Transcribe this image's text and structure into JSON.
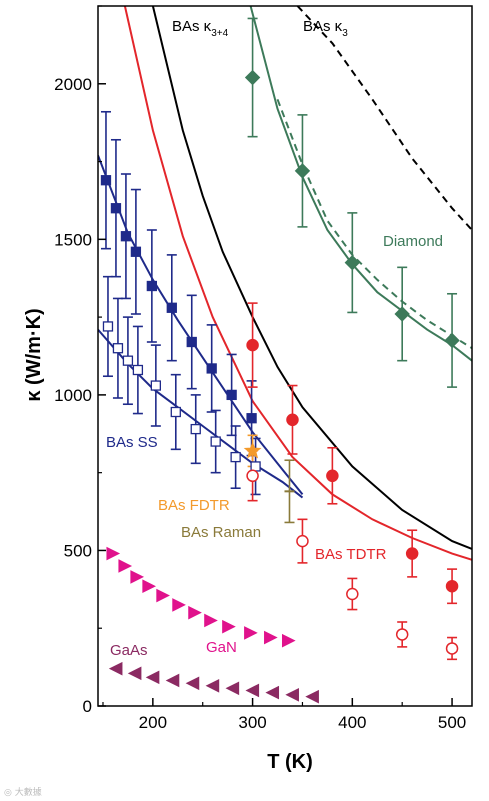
{
  "chart_data": {
    "type": "scatter",
    "xlabel": "T (K)",
    "ylabel": "κ (W/m·K)",
    "xlim": [
      145,
      520
    ],
    "ylim": [
      0,
      2250
    ],
    "xticks": [
      200,
      300,
      400,
      500
    ],
    "yticks": [
      0,
      500,
      1000,
      1500,
      2000
    ],
    "grid": false,
    "annotations": [
      {
        "text": "BAs κ",
        "sub": "3+4",
        "color": "#000000"
      },
      {
        "text": "BAs κ",
        "sub": "3",
        "color": "#000000"
      },
      {
        "text": "Diamond",
        "color": "#3d7a5a"
      },
      {
        "text": "BAs SS",
        "color": "#1f2a8a"
      },
      {
        "text": "BAs FDTR",
        "color": "#f39a2c"
      },
      {
        "text": "BAs Raman",
        "color": "#8a7a3a"
      },
      {
        "text": "BAs TDTR",
        "color": "#e3262b"
      },
      {
        "text": "GaN",
        "color": "#e0128c"
      },
      {
        "text": "GaAs",
        "color": "#8b2a62"
      }
    ],
    "curves": [
      {
        "id": "bas-k34",
        "color": "#000000",
        "dash": false,
        "x": [
          200,
          230,
          250,
          270,
          300,
          325,
          350,
          400,
          450,
          500,
          520
        ],
        "y": [
          2250,
          1850,
          1640,
          1460,
          1250,
          1090,
          960,
          770,
          630,
          530,
          505
        ]
      },
      {
        "id": "bas-k3",
        "color": "#000000",
        "dash": true,
        "x": [
          345,
          380,
          420,
          460,
          500,
          520
        ],
        "y": [
          2250,
          2130,
          1950,
          1760,
          1600,
          1530
        ]
      },
      {
        "id": "bas-tdtr-fit",
        "color": "#e3262b",
        "dash": false,
        "x": [
          172,
          200,
          230,
          260,
          300,
          340,
          380,
          420,
          460,
          500,
          520
        ],
        "y": [
          2250,
          1850,
          1510,
          1250,
          980,
          800,
          680,
          600,
          540,
          490,
          470
        ]
      },
      {
        "id": "diamond-fit",
        "color": "#3d7a5a",
        "dash": false,
        "x": [
          298,
          325,
          350,
          375,
          400,
          425,
          450,
          475,
          500,
          520
        ],
        "y": [
          2250,
          1920,
          1700,
          1530,
          1420,
          1330,
          1270,
          1210,
          1160,
          1110
        ]
      },
      {
        "id": "diamond-fit-2",
        "color": "#3d7a5a",
        "dash": true,
        "x": [
          325,
          350,
          375,
          400,
          425,
          450,
          475,
          500,
          520
        ],
        "y": [
          1950,
          1740,
          1560,
          1450,
          1370,
          1300,
          1240,
          1190,
          1150
        ]
      },
      {
        "id": "bas-ss-fit-1",
        "color": "#1f2a8a",
        "dash": false,
        "x": [
          145,
          175,
          200,
          225,
          250,
          275,
          300,
          330,
          350
        ],
        "y": [
          1770,
          1520,
          1370,
          1240,
          1120,
          1000,
          880,
          760,
          680
        ]
      },
      {
        "id": "bas-ss-fit-2",
        "color": "#1f2a8a",
        "dash": false,
        "x": [
          145,
          175,
          200,
          225,
          250,
          275,
          300,
          330,
          350
        ],
        "y": [
          1210,
          1100,
          1020,
          960,
          900,
          840,
          780,
          720,
          670
        ]
      }
    ],
    "series": [
      {
        "id": "bas-ss-filled",
        "marker": "square",
        "filled": true,
        "color": "#1f2a8a",
        "x": [
          153,
          163,
          173,
          183,
          199,
          219,
          239,
          259,
          279,
          299
        ],
        "y": [
          1690,
          1600,
          1510,
          1460,
          1350,
          1280,
          1170,
          1085,
          1000,
          925
        ],
        "err": [
          220,
          220,
          200,
          200,
          180,
          170,
          150,
          140,
          130,
          120
        ]
      },
      {
        "id": "bas-ss-open",
        "marker": "square",
        "filled": false,
        "color": "#1f2a8a",
        "x": [
          155,
          165,
          175,
          185,
          203,
          223,
          243,
          263,
          283,
          303
        ],
        "y": [
          1220,
          1150,
          1110,
          1080,
          1030,
          945,
          890,
          850,
          800,
          770
        ],
        "err": [
          160,
          160,
          140,
          140,
          130,
          120,
          110,
          100,
          100,
          90
        ]
      },
      {
        "id": "bas-tdtr-filled",
        "marker": "circle",
        "filled": true,
        "color": "#e3262b",
        "x": [
          300,
          340,
          380,
          460,
          500
        ],
        "y": [
          1160,
          920,
          740,
          490,
          385
        ],
        "err": [
          135,
          110,
          90,
          75,
          55
        ]
      },
      {
        "id": "bas-tdtr-open",
        "marker": "circle",
        "filled": false,
        "color": "#e3262b",
        "x": [
          300,
          350,
          400,
          450,
          500
        ],
        "y": [
          740,
          530,
          360,
          230,
          185
        ],
        "err": [
          80,
          70,
          50,
          40,
          35
        ]
      },
      {
        "id": "bas-fdtr",
        "marker": "star",
        "filled": true,
        "color": "#f39a2c",
        "x": [
          300
        ],
        "y": [
          820
        ],
        "err": [
          50
        ]
      },
      {
        "id": "bas-raman",
        "marker": "dash",
        "filled": true,
        "color": "#8a7a3a",
        "x": [
          337
        ],
        "y": [
          690
        ],
        "err": [
          100
        ]
      },
      {
        "id": "diamond-data",
        "marker": "diamond",
        "filled": true,
        "color": "#3d7a5a",
        "x": [
          300,
          350,
          400,
          450,
          500
        ],
        "y": [
          2020,
          1720,
          1425,
          1260,
          1175
        ],
        "err": [
          190,
          180,
          160,
          150,
          150
        ]
      },
      {
        "id": "gan",
        "marker": "triangle-right",
        "filled": true,
        "color": "#e0128c",
        "x": [
          160,
          172,
          184,
          196,
          210,
          226,
          242,
          258,
          276,
          298,
          318,
          336
        ],
        "y": [
          490,
          450,
          415,
          385,
          355,
          325,
          300,
          275,
          255,
          235,
          220,
          210
        ]
      },
      {
        "id": "gaas",
        "marker": "triangle-left",
        "filled": true,
        "color": "#8b2a62",
        "x": [
          163,
          182,
          200,
          220,
          240,
          260,
          280,
          300,
          320,
          340,
          360
        ],
        "y": [
          120,
          105,
          92,
          82,
          73,
          65,
          57,
          50,
          43,
          36,
          30
        ]
      }
    ]
  },
  "watermark": "◎ 大數據"
}
